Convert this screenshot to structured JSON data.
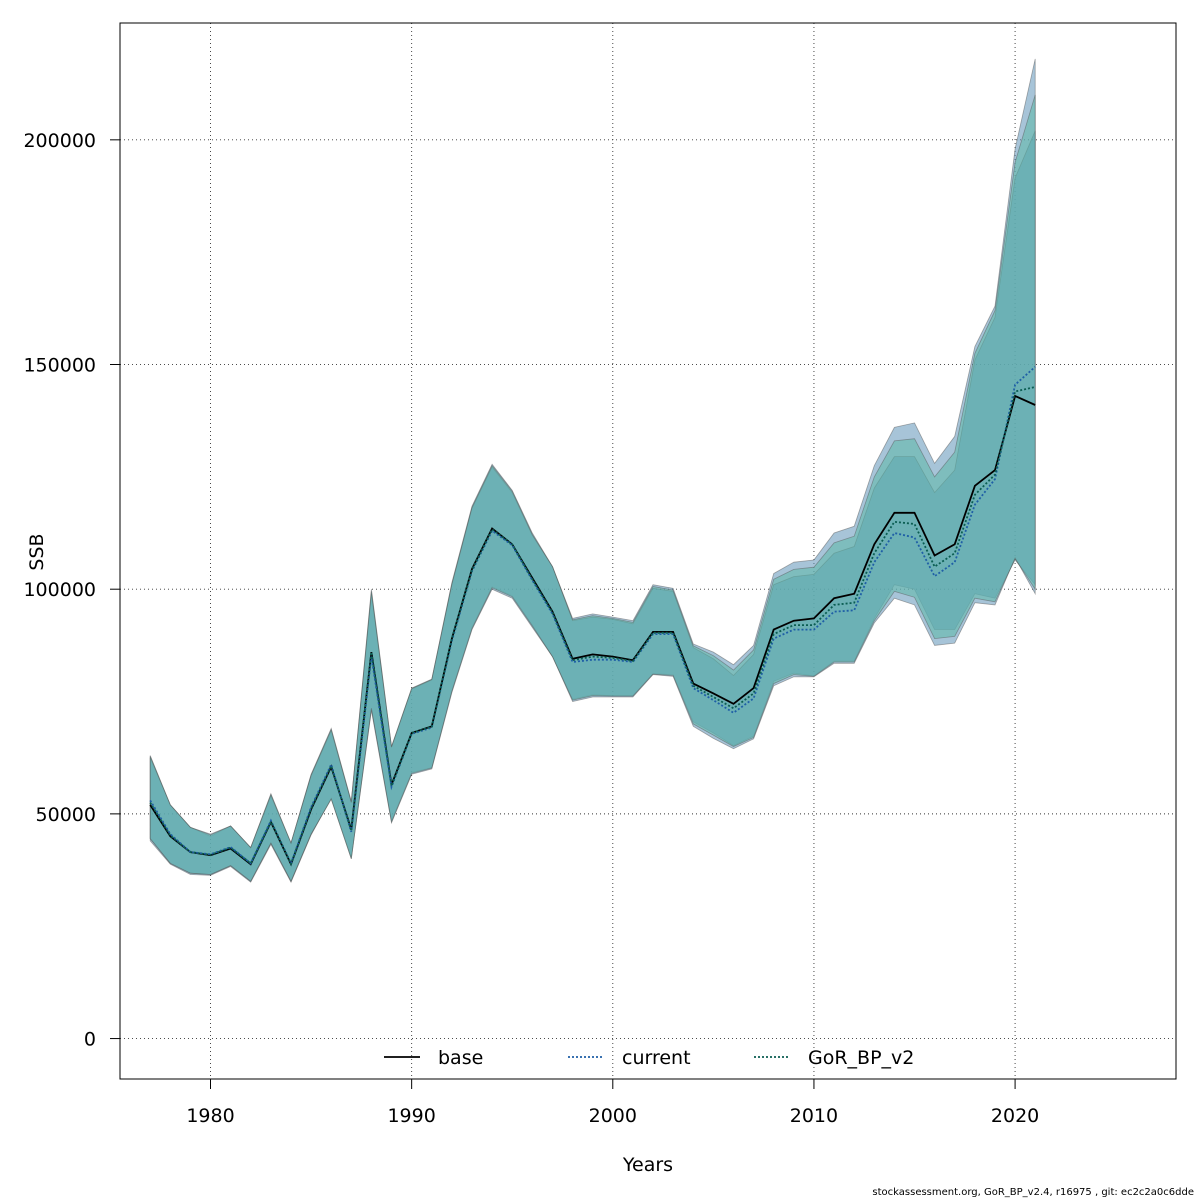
{
  "chart_data": {
    "type": "line",
    "xlabel": "Years",
    "ylabel": "SSB",
    "xlim": [
      1975.5,
      2028
    ],
    "ylim": [
      -9000,
      226000
    ],
    "x_ticks": [
      1980,
      1990,
      2000,
      2010,
      2020
    ],
    "y_ticks": [
      0,
      50000,
      100000,
      150000,
      200000
    ],
    "grid": true,
    "legend_position": "bottom",
    "x": [
      1977,
      1978,
      1979,
      1980,
      1981,
      1982,
      1983,
      1984,
      1985,
      1986,
      1987,
      1988,
      1989,
      1990,
      1991,
      1992,
      1993,
      1994,
      1995,
      1996,
      1997,
      1998,
      1999,
      2000,
      2001,
      2002,
      2003,
      2004,
      2005,
      2006,
      2007,
      2008,
      2009,
      2010,
      2011,
      2012,
      2013,
      2014,
      2015,
      2016,
      2017,
      2018,
      2019,
      2020,
      2021
    ],
    "series": [
      {
        "name": "base",
        "color": "#000000",
        "linestyle": "solid",
        "values": [
          52000,
          45000,
          41500,
          40800,
          42300,
          38800,
          48200,
          38800,
          51000,
          60500,
          46500,
          86000,
          56500,
          68000,
          69500,
          89000,
          104500,
          113500,
          110000,
          102500,
          95000,
          84500,
          85500,
          85000,
          84200,
          90500,
          90500,
          79000,
          76800,
          74500,
          78000,
          91000,
          93000,
          93500,
          98000,
          99000,
          110000,
          117000,
          117000,
          107500,
          110000,
          123000,
          126500,
          143000,
          141000
        ],
        "ci_lower": [
          44000,
          38800,
          36500,
          36300,
          38300,
          34800,
          43200,
          34800,
          45300,
          53500,
          40300,
          73500,
          48500,
          59200,
          60300,
          77500,
          91500,
          100500,
          98500,
          92000,
          85000,
          75500,
          76500,
          76300,
          76300,
          81200,
          81000,
          70500,
          68000,
          65200,
          67300,
          79500,
          81300,
          80700,
          84000,
          84000,
          93500,
          101000,
          100000,
          91000,
          91000,
          99000,
          98000,
          106500,
          101000
        ],
        "ci_upper": [
          63000,
          52000,
          47000,
          45000,
          47300,
          42500,
          54500,
          43500,
          58800,
          69000,
          52800,
          100000,
          65000,
          78000,
          80000,
          101500,
          118500,
          127800,
          122000,
          112500,
          105000,
          93500,
          94500,
          93800,
          93000,
          101000,
          100200,
          87800,
          86000,
          83200,
          87500,
          103500,
          106000,
          106500,
          112500,
          114000,
          127500,
          136000,
          137000,
          128000,
          134000,
          154000,
          163000,
          198000,
          218000
        ]
      },
      {
        "name": "current",
        "color": "#1f5fa6",
        "linestyle": "dotted",
        "values": [
          53000,
          45500,
          41500,
          41000,
          42600,
          39000,
          48500,
          39000,
          51500,
          61000,
          46000,
          85000,
          56000,
          67800,
          69200,
          88500,
          104000,
          113000,
          109800,
          102000,
          94500,
          83800,
          84300,
          84300,
          83800,
          90000,
          90000,
          78000,
          75300,
          72500,
          75700,
          89000,
          91000,
          91000,
          95000,
          95300,
          106000,
          112500,
          111500,
          102900,
          106000,
          118800,
          124500,
          145500,
          149500
        ],
        "ci_lower": [
          44500,
          39000,
          36800,
          36500,
          38500,
          35000,
          43500,
          35000,
          45500,
          53300,
          40000,
          73000,
          48000,
          58800,
          60000,
          77000,
          91000,
          100000,
          98000,
          91500,
          85000,
          75000,
          76000,
          76000,
          76000,
          81000,
          80600,
          69500,
          66800,
          64500,
          66700,
          78500,
          80500,
          80500,
          83500,
          83500,
          92500,
          98000,
          96500,
          87500,
          88000,
          97000,
          96500,
          107000,
          99000
        ],
        "ci_upper": [
          62500,
          52000,
          47000,
          45500,
          47300,
          42500,
          54000,
          43500,
          58500,
          68500,
          52500,
          99000,
          64800,
          77800,
          79800,
          101000,
          118000,
          127200,
          121500,
          112000,
          105000,
          93000,
          93800,
          93300,
          92300,
          100200,
          99500,
          87000,
          84500,
          80800,
          85500,
          101000,
          102800,
          103300,
          108000,
          109500,
          122500,
          129500,
          129500,
          121500,
          126500,
          151000,
          160500,
          191500,
          202000
        ]
      },
      {
        "name": "GoR_BP_v2",
        "color": "#0b5d52",
        "linestyle": "dotted",
        "values": [
          52500,
          45200,
          41500,
          40900,
          42500,
          39000,
          48300,
          38900,
          51200,
          60700,
          46200,
          86000,
          56200,
          68000,
          69400,
          89000,
          104300,
          113300,
          110000,
          102200,
          94800,
          84200,
          85000,
          84700,
          84000,
          90300,
          90300,
          78500,
          76000,
          73500,
          76800,
          90000,
          92000,
          92000,
          96500,
          97000,
          108000,
          115000,
          114500,
          105000,
          108000,
          121000,
          125500,
          144000,
          145000
        ],
        "ci_lower": [
          44500,
          39000,
          36800,
          36500,
          38500,
          35000,
          43500,
          35000,
          45500,
          53300,
          40000,
          73500,
          48200,
          59000,
          60200,
          77300,
          91200,
          100300,
          98300,
          91800,
          85000,
          75300,
          76300,
          76200,
          76200,
          81100,
          80800,
          70000,
          67500,
          65000,
          67000,
          79000,
          81000,
          80600,
          83800,
          83800,
          93000,
          99500,
          98200,
          89000,
          89500,
          98000,
          97200,
          106800,
          100000
        ],
        "ci_upper": [
          62800,
          52000,
          47000,
          45300,
          47300,
          42500,
          54300,
          43500,
          58600,
          68800,
          52600,
          99500,
          64900,
          77900,
          79900,
          101200,
          118200,
          127500,
          121800,
          112200,
          105000,
          93200,
          94100,
          93500,
          92600,
          100600,
          99800,
          87400,
          85200,
          82000,
          86500,
          102200,
          104400,
          104900,
          110300,
          111800,
          125000,
          133000,
          133500,
          125000,
          130500,
          152500,
          162000,
          195000,
          210000
        ]
      }
    ],
    "footer_text": "stockassessment.org, GoR_BP_v2.4, r16975 , git: ec2c2a0c6dde"
  }
}
